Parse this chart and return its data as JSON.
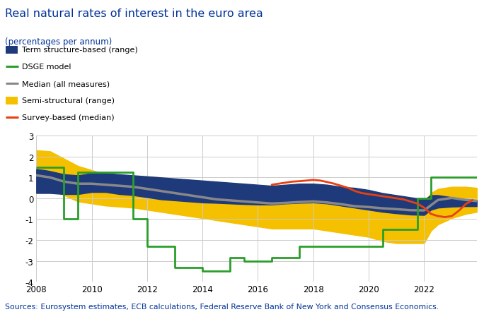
{
  "title": "Real natural rates of interest in the euro area",
  "subtitle": "(percentages per annum)",
  "source": "Sources: Eurosystem estimates, ECB calculations, Federal Reserve Bank of New York and Consensus Economics.",
  "xlim": [
    2008.0,
    2023.9
  ],
  "ylim": [
    -4,
    3
  ],
  "yticks": [
    -4,
    -3,
    -2,
    -1,
    0,
    1,
    2,
    3
  ],
  "xticks": [
    2008,
    2010,
    2012,
    2014,
    2016,
    2018,
    2020,
    2022
  ],
  "term_struct_upper": [
    [
      2008.0,
      1.4
    ],
    [
      2008.3,
      1.35
    ],
    [
      2008.5,
      1.3
    ],
    [
      2009.0,
      1.15
    ],
    [
      2009.5,
      1.1
    ],
    [
      2010.0,
      1.2
    ],
    [
      2010.5,
      1.2
    ],
    [
      2011.0,
      1.15
    ],
    [
      2011.5,
      1.1
    ],
    [
      2012.0,
      1.05
    ],
    [
      2012.5,
      1.0
    ],
    [
      2013.0,
      0.95
    ],
    [
      2013.5,
      0.9
    ],
    [
      2014.0,
      0.85
    ],
    [
      2014.5,
      0.8
    ],
    [
      2015.0,
      0.75
    ],
    [
      2015.5,
      0.7
    ],
    [
      2016.0,
      0.65
    ],
    [
      2016.5,
      0.6
    ],
    [
      2017.0,
      0.65
    ],
    [
      2017.5,
      0.7
    ],
    [
      2018.0,
      0.7
    ],
    [
      2018.5,
      0.65
    ],
    [
      2019.0,
      0.55
    ],
    [
      2019.5,
      0.5
    ],
    [
      2020.0,
      0.4
    ],
    [
      2020.5,
      0.25
    ],
    [
      2021.0,
      0.15
    ],
    [
      2021.5,
      0.05
    ],
    [
      2022.0,
      -0.05
    ],
    [
      2022.25,
      0.15
    ],
    [
      2022.5,
      0.15
    ],
    [
      2023.0,
      0.05
    ],
    [
      2023.5,
      -0.05
    ],
    [
      2023.9,
      -0.1
    ]
  ],
  "term_struct_lower": [
    [
      2008.0,
      0.25
    ],
    [
      2008.3,
      0.25
    ],
    [
      2008.5,
      0.25
    ],
    [
      2009.0,
      0.2
    ],
    [
      2009.5,
      0.2
    ],
    [
      2010.0,
      0.3
    ],
    [
      2010.5,
      0.3
    ],
    [
      2011.0,
      0.2
    ],
    [
      2011.5,
      0.15
    ],
    [
      2012.0,
      0.05
    ],
    [
      2012.5,
      -0.05
    ],
    [
      2013.0,
      -0.1
    ],
    [
      2013.5,
      -0.15
    ],
    [
      2014.0,
      -0.2
    ],
    [
      2014.5,
      -0.22
    ],
    [
      2015.0,
      -0.25
    ],
    [
      2015.5,
      -0.28
    ],
    [
      2016.0,
      -0.3
    ],
    [
      2016.5,
      -0.3
    ],
    [
      2017.0,
      -0.25
    ],
    [
      2017.5,
      -0.22
    ],
    [
      2018.0,
      -0.2
    ],
    [
      2018.5,
      -0.25
    ],
    [
      2019.0,
      -0.35
    ],
    [
      2019.5,
      -0.45
    ],
    [
      2020.0,
      -0.55
    ],
    [
      2020.5,
      -0.65
    ],
    [
      2021.0,
      -0.72
    ],
    [
      2021.5,
      -0.78
    ],
    [
      2022.0,
      -0.8
    ],
    [
      2022.25,
      -0.55
    ],
    [
      2022.5,
      -0.45
    ],
    [
      2023.0,
      -0.4
    ],
    [
      2023.5,
      -0.38
    ],
    [
      2023.9,
      -0.38
    ]
  ],
  "semi_struct_upper": [
    [
      2008.0,
      2.3
    ],
    [
      2008.5,
      2.25
    ],
    [
      2009.0,
      1.9
    ],
    [
      2009.5,
      1.55
    ],
    [
      2010.0,
      1.35
    ],
    [
      2010.5,
      1.15
    ],
    [
      2011.0,
      1.1
    ],
    [
      2011.5,
      1.05
    ],
    [
      2012.0,
      1.05
    ],
    [
      2012.5,
      1.0
    ],
    [
      2013.0,
      0.9
    ],
    [
      2013.5,
      0.8
    ],
    [
      2014.0,
      0.65
    ],
    [
      2014.5,
      0.55
    ],
    [
      2015.0,
      0.45
    ],
    [
      2015.5,
      0.35
    ],
    [
      2016.0,
      0.25
    ],
    [
      2016.5,
      0.2
    ],
    [
      2017.0,
      0.25
    ],
    [
      2017.5,
      0.35
    ],
    [
      2018.0,
      0.4
    ],
    [
      2018.5,
      0.35
    ],
    [
      2019.0,
      0.25
    ],
    [
      2019.5,
      0.15
    ],
    [
      2020.0,
      0.05
    ],
    [
      2020.5,
      -0.0
    ],
    [
      2021.0,
      -0.05
    ],
    [
      2021.5,
      -0.1
    ],
    [
      2022.0,
      -0.15
    ],
    [
      2022.25,
      0.25
    ],
    [
      2022.5,
      0.45
    ],
    [
      2023.0,
      0.55
    ],
    [
      2023.5,
      0.55
    ],
    [
      2023.9,
      0.5
    ]
  ],
  "semi_struct_lower": [
    [
      2008.0,
      0.55
    ],
    [
      2008.5,
      0.45
    ],
    [
      2009.0,
      0.15
    ],
    [
      2009.5,
      -0.15
    ],
    [
      2010.0,
      -0.25
    ],
    [
      2010.5,
      -0.35
    ],
    [
      2011.0,
      -0.4
    ],
    [
      2011.5,
      -0.45
    ],
    [
      2012.0,
      -0.55
    ],
    [
      2012.5,
      -0.65
    ],
    [
      2013.0,
      -0.75
    ],
    [
      2013.5,
      -0.85
    ],
    [
      2014.0,
      -0.95
    ],
    [
      2014.5,
      -1.05
    ],
    [
      2015.0,
      -1.15
    ],
    [
      2015.5,
      -1.25
    ],
    [
      2016.0,
      -1.35
    ],
    [
      2016.5,
      -1.45
    ],
    [
      2017.0,
      -1.45
    ],
    [
      2017.5,
      -1.45
    ],
    [
      2018.0,
      -1.45
    ],
    [
      2018.5,
      -1.55
    ],
    [
      2019.0,
      -1.65
    ],
    [
      2019.5,
      -1.75
    ],
    [
      2020.0,
      -1.85
    ],
    [
      2020.5,
      -2.05
    ],
    [
      2021.0,
      -2.15
    ],
    [
      2021.5,
      -2.15
    ],
    [
      2022.0,
      -2.15
    ],
    [
      2022.25,
      -1.55
    ],
    [
      2022.5,
      -1.25
    ],
    [
      2023.0,
      -0.95
    ],
    [
      2023.5,
      -0.75
    ],
    [
      2023.9,
      -0.65
    ]
  ],
  "dsge_x": [
    2008.0,
    2009.0,
    2009.0,
    2009.5,
    2009.5,
    2011.5,
    2011.5,
    2012.0,
    2012.0,
    2013.0,
    2013.0,
    2014.0,
    2014.0,
    2015.0,
    2015.0,
    2015.5,
    2015.5,
    2016.5,
    2016.5,
    2017.5,
    2017.5,
    2018.5,
    2018.5,
    2019.5,
    2019.5,
    2020.5,
    2020.5,
    2021.75,
    2021.75,
    2022.25,
    2022.25,
    2023.9
  ],
  "dsge_y": [
    1.5,
    1.5,
    -1.0,
    -1.0,
    1.25,
    1.25,
    -1.0,
    -1.0,
    -2.3,
    -2.3,
    -3.3,
    -3.3,
    -3.5,
    -3.5,
    -2.85,
    -2.85,
    -3.0,
    -3.0,
    -2.85,
    -2.85,
    -2.3,
    -2.3,
    -2.3,
    -2.3,
    -2.3,
    -2.3,
    -1.5,
    -1.5,
    0.0,
    0.0,
    1.0,
    1.0
  ],
  "median_x": [
    2008.0,
    2008.5,
    2009.0,
    2009.5,
    2010.0,
    2010.5,
    2011.0,
    2011.5,
    2012.0,
    2012.5,
    2013.0,
    2013.5,
    2014.0,
    2014.5,
    2015.0,
    2015.5,
    2016.0,
    2016.5,
    2017.0,
    2017.5,
    2018.0,
    2018.5,
    2019.0,
    2019.5,
    2020.0,
    2020.5,
    2021.0,
    2021.5,
    2022.0,
    2022.5,
    2023.0,
    2023.5,
    2023.9
  ],
  "median_y": [
    1.1,
    1.0,
    0.8,
    0.7,
    0.7,
    0.65,
    0.6,
    0.55,
    0.45,
    0.35,
    0.25,
    0.15,
    0.05,
    -0.05,
    -0.1,
    -0.15,
    -0.2,
    -0.25,
    -0.22,
    -0.18,
    -0.15,
    -0.2,
    -0.28,
    -0.38,
    -0.42,
    -0.48,
    -0.52,
    -0.57,
    -0.58,
    -0.08,
    0.02,
    -0.08,
    -0.13
  ],
  "survey_x": [
    2016.5,
    2016.75,
    2017.0,
    2017.25,
    2017.5,
    2017.75,
    2018.0,
    2018.25,
    2018.5,
    2018.75,
    2019.0,
    2019.25,
    2019.5,
    2019.75,
    2020.0,
    2020.25,
    2020.5,
    2020.75,
    2021.0,
    2021.25,
    2021.5,
    2021.75,
    2022.0,
    2022.25,
    2022.5,
    2022.75,
    2023.0,
    2023.25,
    2023.5,
    2023.75
  ],
  "survey_y": [
    0.65,
    0.7,
    0.75,
    0.8,
    0.82,
    0.85,
    0.88,
    0.85,
    0.78,
    0.7,
    0.6,
    0.5,
    0.35,
    0.25,
    0.2,
    0.15,
    0.1,
    0.05,
    0.0,
    -0.05,
    -0.15,
    -0.25,
    -0.45,
    -0.75,
    -0.85,
    -0.9,
    -0.85,
    -0.6,
    -0.28,
    -0.08
  ],
  "colors": {
    "term_struct": "#1f3a7a",
    "semi_struct": "#f5c000",
    "dsge": "#2a9e2a",
    "median": "#888888",
    "survey": "#e84010",
    "title": "#003399",
    "subtitle": "#003399",
    "source": "#003399",
    "source_bg": "#dde8f5",
    "divider": "#002266"
  }
}
